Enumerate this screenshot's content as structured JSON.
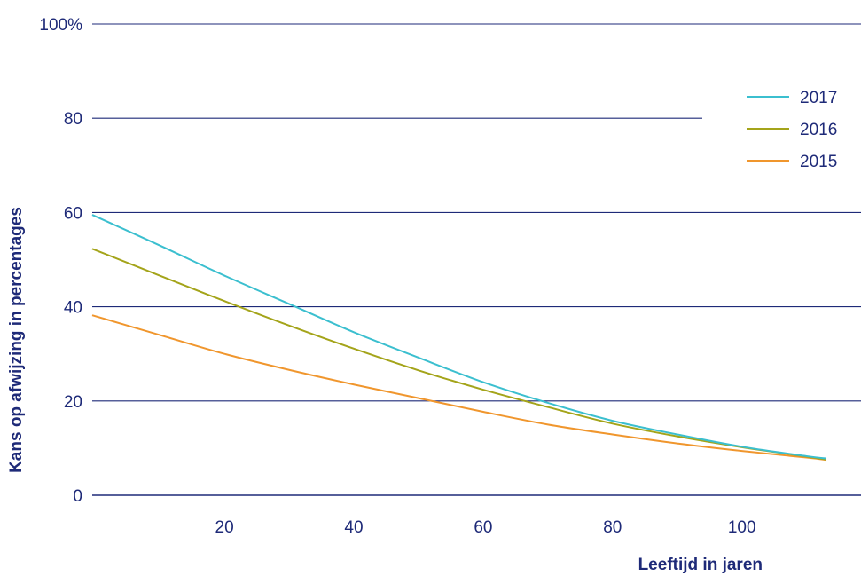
{
  "chart_data": {
    "type": "line",
    "xlabel": "Leeftijd in jaren",
    "ylabel": "Kans op afwijzing in percentages",
    "xlim": [
      0,
      114
    ],
    "ylim": [
      0,
      100
    ],
    "x_ticks": [
      20,
      40,
      60,
      80,
      100
    ],
    "y_ticks": [
      {
        "value": 0,
        "label": "0"
      },
      {
        "value": 20,
        "label": "20"
      },
      {
        "value": 40,
        "label": "40"
      },
      {
        "value": 60,
        "label": "60"
      },
      {
        "value": 80,
        "label": "80"
      },
      {
        "value": 100,
        "label": "100%"
      }
    ],
    "grid": true,
    "legend_position": "top-right",
    "x": [
      0,
      10,
      20,
      30,
      40,
      50,
      60,
      70,
      80,
      90,
      100,
      110,
      113
    ],
    "series": [
      {
        "name": "2017",
        "color": "#3bbfcf",
        "values": [
          59.5,
          53.0,
          46.6,
          40.6,
          34.6,
          29.2,
          24.0,
          19.6,
          15.8,
          12.9,
          10.3,
          8.3,
          7.8
        ]
      },
      {
        "name": "2016",
        "color": "#a4a41a",
        "values": [
          52.3,
          46.6,
          41.2,
          36.0,
          31.1,
          26.5,
          22.4,
          18.7,
          15.2,
          12.5,
          10.2,
          8.2,
          7.6
        ]
      },
      {
        "name": "2015",
        "color": "#f0962d",
        "values": [
          38.2,
          34.0,
          30.0,
          26.6,
          23.5,
          20.6,
          17.7,
          15.0,
          12.9,
          11.0,
          9.4,
          8.0,
          7.5
        ]
      }
    ]
  }
}
